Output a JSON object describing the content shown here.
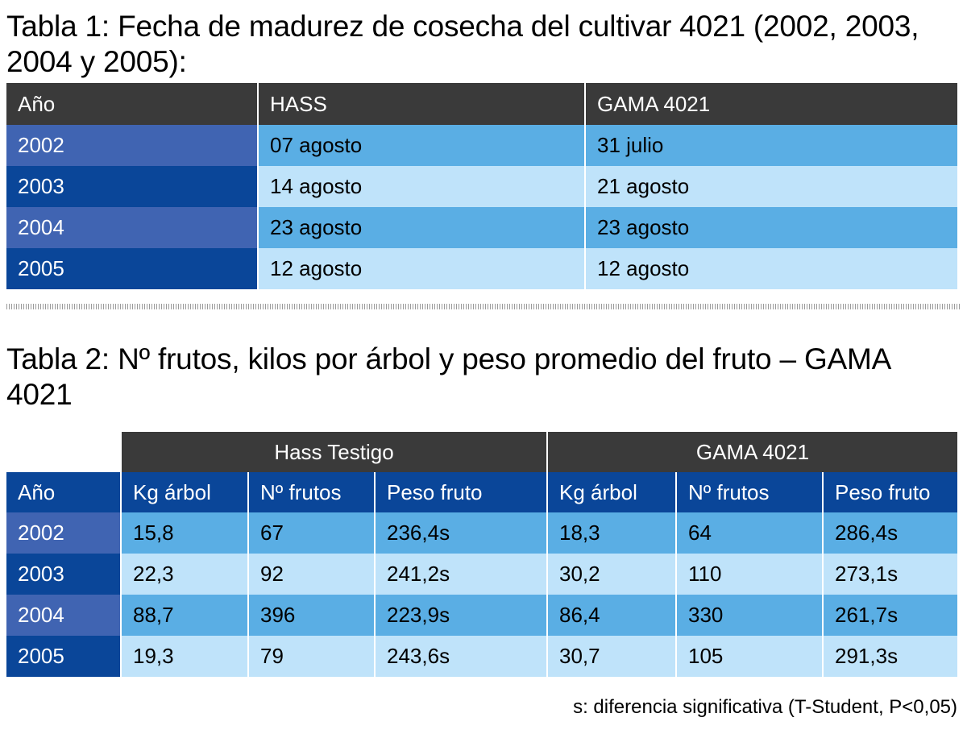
{
  "table1": {
    "title": "Tabla 1: Fecha de madurez de cosecha del cultivar 4021 (2002, 2003, 2004 y 2005):",
    "headers": [
      "Año",
      "HASS",
      "GAMA 4021"
    ],
    "rows": [
      [
        "2002",
        "07 agosto",
        "31 julio"
      ],
      [
        "2003",
        "14 agosto",
        "21 agosto"
      ],
      [
        "2004",
        "23 agosto",
        "23 agosto"
      ],
      [
        "2005",
        "12 agosto",
        "12 agosto"
      ]
    ]
  },
  "table2": {
    "title": "Tabla 2: Nº frutos, kilos por árbol y peso promedio del fruto – GAMA 4021",
    "groups": [
      "Hass Testigo",
      "GAMA 4021"
    ],
    "headers": [
      "Año",
      "Kg árbol",
      "Nº frutos",
      "Peso fruto",
      "Kg árbol",
      "Nº frutos",
      "Peso fruto"
    ],
    "rows": [
      [
        "2002",
        "15,8",
        "67",
        "236,4s",
        "18,3",
        "64",
        "286,4s"
      ],
      [
        "2003",
        "22,3",
        "92",
        "241,2s",
        "30,2",
        "110",
        "273,1s"
      ],
      [
        "2004",
        "88,7",
        "396",
        "223,9s",
        "86,4",
        "330",
        "261,7s"
      ],
      [
        "2005",
        "19,3",
        "79",
        "243,6s",
        "30,7",
        "105",
        "291,3s"
      ]
    ]
  },
  "footnote": "s: diferencia significativa (T-Student, P<0,05)",
  "colors": {
    "header_dark": "#3a3a3a",
    "header_blue": "#0a4699",
    "year_light": "#4064b2",
    "year_dark": "#0a4699",
    "row_mid": "#5aaee4",
    "row_light": "#bfe3fa"
  }
}
